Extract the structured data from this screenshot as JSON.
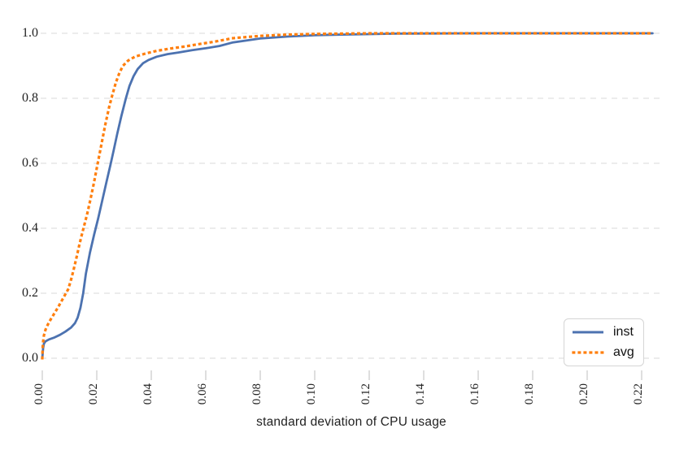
{
  "figure": {
    "background": "#ffffff",
    "text_color": "#222222",
    "grid_color": "#d9d9d9",
    "tick_color": "#c9c9c9"
  },
  "legend": {
    "items": [
      {
        "label": "inst",
        "color": "#4c72b0",
        "style": "solid"
      },
      {
        "label": "avg",
        "color": "#ff7f0e",
        "style": "dotted"
      }
    ]
  },
  "chart_data": {
    "type": "line",
    "title": "",
    "xlabel": "standard deviation of CPU usage",
    "ylabel": "",
    "xlim": [
      0,
      0.224
    ],
    "ylim": [
      0,
      1.0
    ],
    "grid": "horizontal-dashed",
    "legend_position": "lower right",
    "x_ticks": [
      0.0,
      0.02,
      0.04,
      0.06,
      0.08,
      0.1,
      0.12,
      0.14,
      0.16,
      0.18,
      0.2,
      0.22
    ],
    "x_tick_labels": [
      "0.00",
      "0.02",
      "0.04",
      "0.06",
      "0.08",
      "0.10",
      "0.12",
      "0.14",
      "0.16",
      "0.18",
      "0.20",
      "0.22"
    ],
    "y_ticks": [
      0.0,
      0.2,
      0.4,
      0.6,
      0.8,
      1.0
    ],
    "y_tick_labels": [
      "0.0",
      "0.2",
      "0.4",
      "0.6",
      "0.8",
      "1.0"
    ],
    "series": [
      {
        "name": "inst",
        "color": "#4c72b0",
        "line_style": "solid",
        "points": [
          [
            0.0,
            0.0
          ],
          [
            0.0003,
            0.03
          ],
          [
            0.0006,
            0.045
          ],
          [
            0.0012,
            0.052
          ],
          [
            0.0025,
            0.058
          ],
          [
            0.0045,
            0.064
          ],
          [
            0.0065,
            0.072
          ],
          [
            0.0085,
            0.082
          ],
          [
            0.0105,
            0.094
          ],
          [
            0.012,
            0.108
          ],
          [
            0.013,
            0.125
          ],
          [
            0.014,
            0.155
          ],
          [
            0.015,
            0.2
          ],
          [
            0.016,
            0.26
          ],
          [
            0.0175,
            0.325
          ],
          [
            0.019,
            0.38
          ],
          [
            0.0205,
            0.43
          ],
          [
            0.022,
            0.485
          ],
          [
            0.0235,
            0.54
          ],
          [
            0.025,
            0.595
          ],
          [
            0.0262,
            0.64
          ],
          [
            0.0275,
            0.69
          ],
          [
            0.029,
            0.745
          ],
          [
            0.0307,
            0.8
          ],
          [
            0.032,
            0.838
          ],
          [
            0.0335,
            0.868
          ],
          [
            0.035,
            0.89
          ],
          [
            0.037,
            0.908
          ],
          [
            0.039,
            0.918
          ],
          [
            0.042,
            0.928
          ],
          [
            0.046,
            0.936
          ],
          [
            0.05,
            0.941
          ],
          [
            0.055,
            0.948
          ],
          [
            0.06,
            0.954
          ],
          [
            0.065,
            0.961
          ],
          [
            0.07,
            0.972
          ],
          [
            0.08,
            0.984
          ],
          [
            0.09,
            0.99
          ],
          [
            0.1,
            0.994
          ],
          [
            0.11,
            0.996
          ],
          [
            0.13,
            0.999
          ],
          [
            0.16,
            1.0
          ],
          [
            0.224,
            1.0
          ]
        ]
      },
      {
        "name": "avg",
        "color": "#ff7f0e",
        "line_style": "dotted",
        "points": [
          [
            0.0,
            0.0
          ],
          [
            0.0002,
            0.045
          ],
          [
            0.0006,
            0.07
          ],
          [
            0.0012,
            0.088
          ],
          [
            0.002,
            0.103
          ],
          [
            0.003,
            0.118
          ],
          [
            0.004,
            0.132
          ],
          [
            0.005,
            0.146
          ],
          [
            0.006,
            0.16
          ],
          [
            0.007,
            0.175
          ],
          [
            0.008,
            0.19
          ],
          [
            0.0095,
            0.212
          ],
          [
            0.0105,
            0.24
          ],
          [
            0.0115,
            0.272
          ],
          [
            0.0125,
            0.308
          ],
          [
            0.0135,
            0.345
          ],
          [
            0.0145,
            0.38
          ],
          [
            0.0155,
            0.412
          ],
          [
            0.0165,
            0.445
          ],
          [
            0.0177,
            0.49
          ],
          [
            0.019,
            0.542
          ],
          [
            0.0203,
            0.598
          ],
          [
            0.0217,
            0.658
          ],
          [
            0.0231,
            0.718
          ],
          [
            0.0245,
            0.772
          ],
          [
            0.0257,
            0.81
          ],
          [
            0.027,
            0.848
          ],
          [
            0.0283,
            0.878
          ],
          [
            0.0296,
            0.9
          ],
          [
            0.0315,
            0.916
          ],
          [
            0.034,
            0.928
          ],
          [
            0.038,
            0.938
          ],
          [
            0.042,
            0.946
          ],
          [
            0.047,
            0.953
          ],
          [
            0.052,
            0.959
          ],
          [
            0.057,
            0.966
          ],
          [
            0.063,
            0.974
          ],
          [
            0.07,
            0.985
          ],
          [
            0.08,
            0.992
          ],
          [
            0.09,
            0.996
          ],
          [
            0.1,
            0.998
          ],
          [
            0.12,
            1.0
          ],
          [
            0.224,
            1.0
          ]
        ]
      }
    ]
  }
}
